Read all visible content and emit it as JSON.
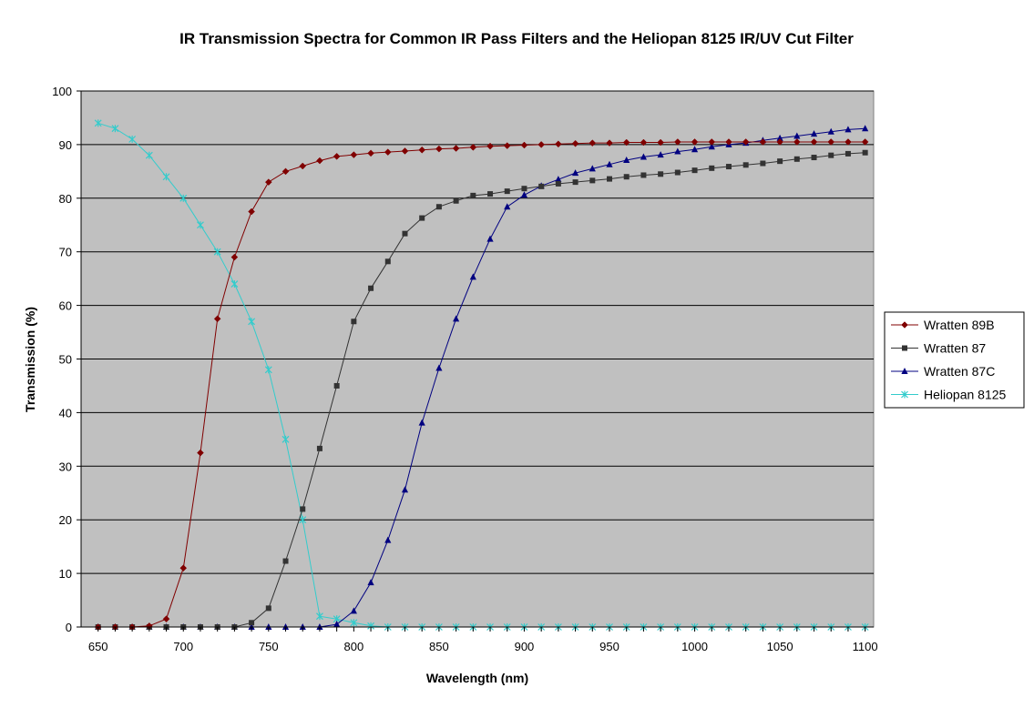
{
  "chart_data": {
    "type": "line",
    "title": "IR Transmission Spectra for Common IR Pass Filters and the Heliopan 8125 IR/UV Cut Filter",
    "xlabel": "Wavelength (nm)",
    "ylabel": "Transmission (%)",
    "xlim": [
      640,
      1105
    ],
    "ylim": [
      0,
      100
    ],
    "xticks": [
      650,
      700,
      750,
      800,
      850,
      900,
      950,
      1000,
      1050,
      1100
    ],
    "yticks": [
      0,
      10,
      20,
      30,
      40,
      50,
      60,
      70,
      80,
      90,
      100
    ],
    "grid": "horizontal",
    "legend_position": "right",
    "plot_background": "#c0c0c0",
    "x": [
      650,
      660,
      670,
      680,
      690,
      700,
      710,
      720,
      730,
      740,
      750,
      760,
      770,
      780,
      790,
      800,
      810,
      820,
      830,
      840,
      850,
      860,
      870,
      880,
      890,
      900,
      910,
      920,
      930,
      940,
      950,
      960,
      970,
      980,
      990,
      1000,
      1010,
      1020,
      1030,
      1040,
      1050,
      1060,
      1070,
      1080,
      1090,
      1100
    ],
    "series": [
      {
        "name": "Wratten 89B",
        "color": "#800000",
        "marker": "diamond",
        "values": [
          0,
          0,
          0,
          0.2,
          1.5,
          11,
          32.5,
          57.5,
          69,
          77.5,
          83,
          85,
          86,
          87,
          87.8,
          88.1,
          88.4,
          88.6,
          88.8,
          89,
          89.2,
          89.3,
          89.5,
          89.7,
          89.8,
          89.9,
          90,
          90.1,
          90.2,
          90.3,
          90.3,
          90.4,
          90.4,
          90.4,
          90.5,
          90.5,
          90.5,
          90.5,
          90.5,
          90.5,
          90.5,
          90.5,
          90.5,
          90.5,
          90.5,
          90.5
        ]
      },
      {
        "name": "Wratten 87",
        "color": "#333333",
        "marker": "square",
        "values": [
          0,
          0,
          0,
          0,
          0,
          0,
          0,
          0,
          0,
          0.8,
          3.5,
          12.3,
          22,
          33.3,
          45,
          57,
          63.2,
          68.2,
          73.4,
          76.3,
          78.4,
          79.5,
          80.5,
          80.8,
          81.3,
          81.8,
          82.2,
          82.7,
          83,
          83.3,
          83.6,
          84,
          84.3,
          84.5,
          84.8,
          85.2,
          85.6,
          85.9,
          86.2,
          86.5,
          86.9,
          87.3,
          87.6,
          88,
          88.3,
          88.5
        ]
      },
      {
        "name": "Wratten 87C",
        "color": "#000080",
        "marker": "triangle",
        "values": [
          0,
          0,
          0,
          0,
          0,
          0,
          0,
          0,
          0,
          0,
          0,
          0,
          0,
          0,
          0.5,
          3,
          8.3,
          16.2,
          25.6,
          38.1,
          48.3,
          57.5,
          65.3,
          72.4,
          78.4,
          80.6,
          82.3,
          83.5,
          84.7,
          85.5,
          86.3,
          87.1,
          87.7,
          88.1,
          88.7,
          89.1,
          89.6,
          90,
          90.3,
          90.8,
          91.2,
          91.6,
          92,
          92.4,
          92.8,
          93
        ]
      },
      {
        "name": "Heliopan 8125",
        "color": "#33cccc",
        "marker": "star",
        "values": [
          94,
          93,
          91,
          88,
          84,
          80,
          75,
          70,
          64,
          57,
          48,
          35,
          20,
          2,
          1.5,
          0.8,
          0.2,
          0,
          0,
          0,
          0,
          0,
          0,
          0,
          0,
          0,
          0,
          0,
          0,
          0,
          0,
          0,
          0,
          0,
          0,
          0,
          0,
          0,
          0,
          0,
          0,
          0,
          0,
          0,
          0,
          0
        ]
      }
    ]
  }
}
